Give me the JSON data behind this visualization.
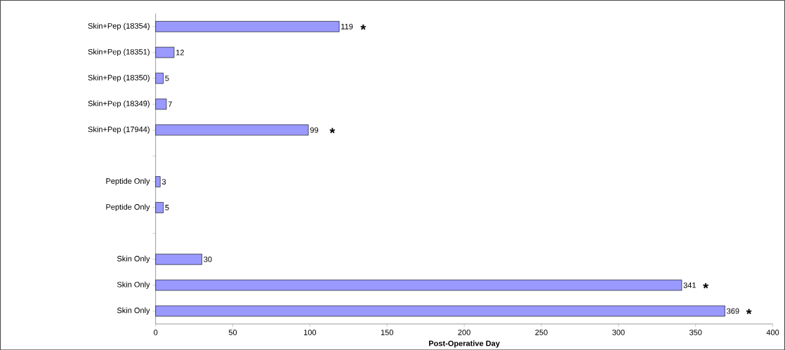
{
  "chart_data": {
    "type": "bar",
    "orientation": "horizontal",
    "xlabel": "Post-Operative Day",
    "categories": [
      "Skin+Pep (18354)",
      "Skin+Pep (18351)",
      "Skin+Pep (18350)",
      "Skin+Pep (18349)",
      "Skin+Pep (17944)",
      null,
      "Peptide Only",
      "Peptide Only",
      null,
      "Skin Only",
      "Skin Only",
      "Skin Only"
    ],
    "values": [
      119,
      12,
      5,
      7,
      99,
      null,
      3,
      5,
      null,
      30,
      341,
      369
    ],
    "color": "#9999ff",
    "data_labels": true,
    "xlim": [
      0,
      400
    ],
    "xticks": [
      0,
      50,
      100,
      150,
      200,
      250,
      300,
      350,
      400
    ],
    "grid": false,
    "annotations": [
      {
        "text": "*",
        "x": 119,
        "y": "Skin+Pep (18354)"
      },
      {
        "text": "*",
        "x": 99,
        "y": "Skin+Pep (17944)"
      },
      "*",
      "*"
    ]
  }
}
